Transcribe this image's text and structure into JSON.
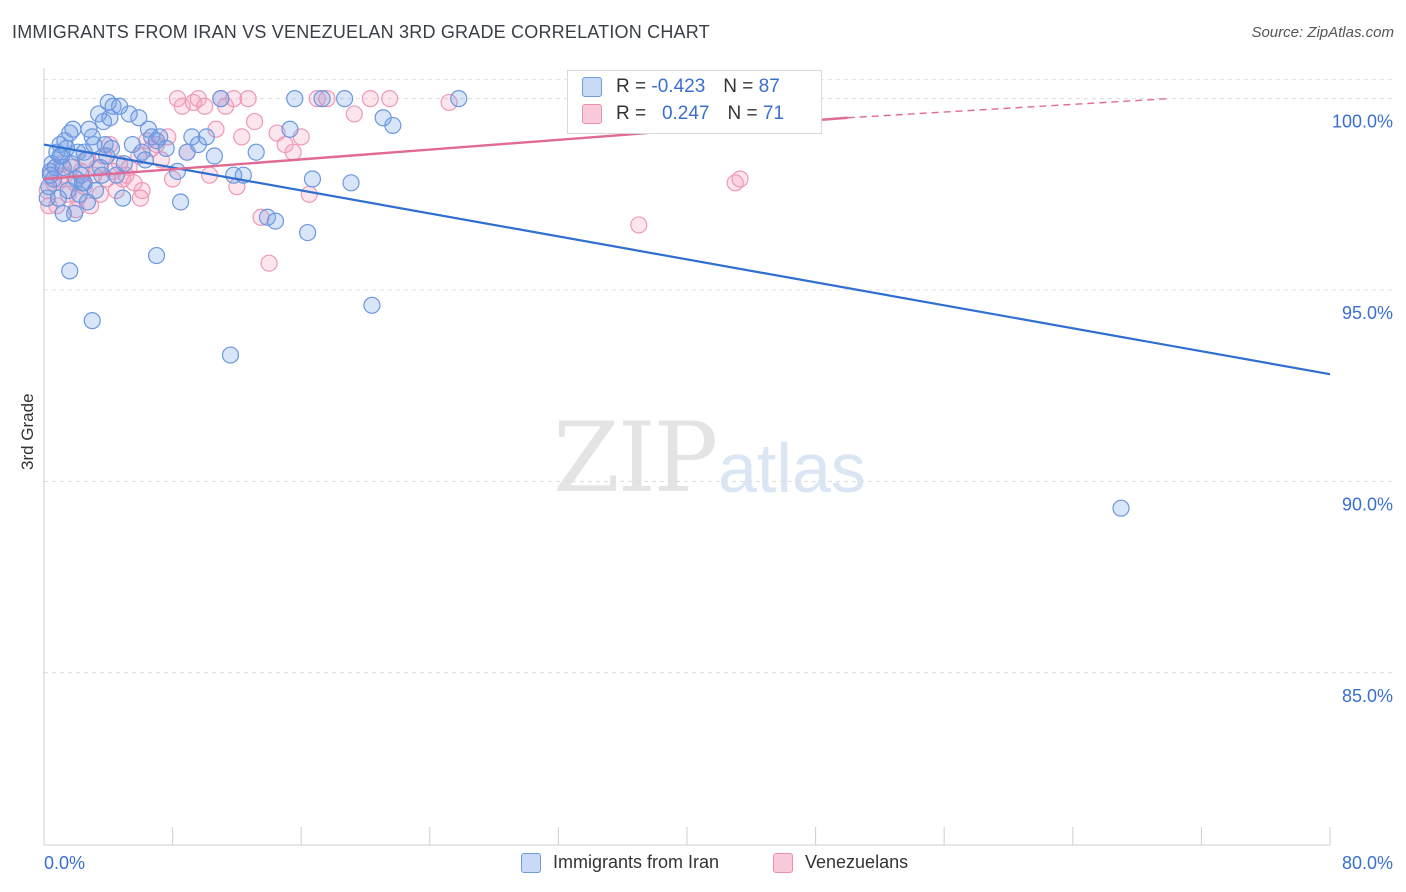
{
  "title": "IMMIGRANTS FROM IRAN VS VENEZUELAN 3RD GRADE CORRELATION CHART",
  "source": "Source: ZipAtlas.com",
  "watermark": {
    "zip": "ZIP",
    "atlas": "atlas"
  },
  "legend": {
    "rows": [
      {
        "r_label": "R =",
        "r_value": "-0.423",
        "n_label": "N =",
        "n_value": "87"
      },
      {
        "r_label": "R =",
        "r_value": "0.247",
        "n_label": "N =",
        "n_value": "71"
      }
    ]
  },
  "chart_data": {
    "type": "scatter",
    "xlabel": "",
    "ylabel": "3rd Grade",
    "xlim": [
      0,
      80
    ],
    "ylim": [
      80.5,
      100.8
    ],
    "x_tick_labels": [
      "0.0%",
      "80.0%"
    ],
    "y_ticks": [
      85,
      90,
      95,
      100
    ],
    "y_tick_labels": [
      "85.0%",
      "90.0%",
      "95.0%",
      "100.0%"
    ],
    "grid": true,
    "legend_position": "top-center",
    "colors": {
      "Immigrants from Iran": "#5b8fde",
      "Venezuelans": "#ee88aa",
      "blue_line": "#2f6fcf",
      "pink_line": "#e06a93",
      "tick_label": "#3a6fd0"
    },
    "series": [
      {
        "name": "Immigrants from Iran",
        "r": -0.423,
        "n": 87,
        "trend": {
          "x": [
            0,
            80
          ],
          "y": [
            98.8,
            92.8
          ]
        },
        "points": [
          [
            0.2,
            97.4
          ],
          [
            0.3,
            97.7
          ],
          [
            0.4,
            98.1
          ],
          [
            0.5,
            98.3
          ],
          [
            0.6,
            97.9
          ],
          [
            0.7,
            98.2
          ],
          [
            0.8,
            98.6
          ],
          [
            0.9,
            97.4
          ],
          [
            1.0,
            98.8
          ],
          [
            1.1,
            98.5
          ],
          [
            1.2,
            98.2
          ],
          [
            1.3,
            98.9
          ],
          [
            1.4,
            98.7
          ],
          [
            1.5,
            97.6
          ],
          [
            1.6,
            99.1
          ],
          [
            1.7,
            98.3
          ],
          [
            1.8,
            99.2
          ],
          [
            1.9,
            97.0
          ],
          [
            2.0,
            97.9
          ],
          [
            2.1,
            98.6
          ],
          [
            2.2,
            97.5
          ],
          [
            2.3,
            98.0
          ],
          [
            2.4,
            97.8
          ],
          [
            2.5,
            98.6
          ],
          [
            2.6,
            98.4
          ],
          [
            2.7,
            97.3
          ],
          [
            2.8,
            99.2
          ],
          [
            3.0,
            99.0
          ],
          [
            3.1,
            98.8
          ],
          [
            3.2,
            97.6
          ],
          [
            3.4,
            99.6
          ],
          [
            3.5,
            98.2
          ],
          [
            3.6,
            98.0
          ],
          [
            3.7,
            99.4
          ],
          [
            3.8,
            98.8
          ],
          [
            3.9,
            98.5
          ],
          [
            4.0,
            99.9
          ],
          [
            4.1,
            99.5
          ],
          [
            4.2,
            98.7
          ],
          [
            4.3,
            99.8
          ],
          [
            4.5,
            98.0
          ],
          [
            4.7,
            99.8
          ],
          [
            4.9,
            97.4
          ],
          [
            5.0,
            98.3
          ],
          [
            5.3,
            99.6
          ],
          [
            5.5,
            98.8
          ],
          [
            5.9,
            99.5
          ],
          [
            6.1,
            98.6
          ],
          [
            6.3,
            98.4
          ],
          [
            6.5,
            99.2
          ],
          [
            6.7,
            99.0
          ],
          [
            7.0,
            98.9
          ],
          [
            7.2,
            99.0
          ],
          [
            7.6,
            98.7
          ],
          [
            8.3,
            98.1
          ],
          [
            8.5,
            97.3
          ],
          [
            8.9,
            98.6
          ],
          [
            9.2,
            99.0
          ],
          [
            9.6,
            98.8
          ],
          [
            10.1,
            99.0
          ],
          [
            10.6,
            98.5
          ],
          [
            11.0,
            100.0
          ],
          [
            11.8,
            98.0
          ],
          [
            12.4,
            98.0
          ],
          [
            13.2,
            98.6
          ],
          [
            13.9,
            96.9
          ],
          [
            14.4,
            96.8
          ],
          [
            15.3,
            99.2
          ],
          [
            15.6,
            100.0
          ],
          [
            16.4,
            96.5
          ],
          [
            16.7,
            97.9
          ],
          [
            17.3,
            100.0
          ],
          [
            18.7,
            100.0
          ],
          [
            19.1,
            97.8
          ],
          [
            20.4,
            94.6
          ],
          [
            21.1,
            99.5
          ],
          [
            21.7,
            99.3
          ],
          [
            25.8,
            100.0
          ],
          [
            7.0,
            95.9
          ],
          [
            11.6,
            93.3
          ],
          [
            3.0,
            94.2
          ],
          [
            1.6,
            95.5
          ],
          [
            67.0,
            89.3
          ],
          [
            1.0,
            98.5
          ],
          [
            2.5,
            97.8
          ],
          [
            0.4,
            98.0
          ],
          [
            1.2,
            97.0
          ]
        ]
      },
      {
        "name": "Venezuelans",
        "r": 0.247,
        "n": 71,
        "trend": {
          "x": [
            0,
            50
          ],
          "y": [
            97.9,
            99.5
          ],
          "x_dashed": [
            50,
            70
          ],
          "y_dashed": [
            99.5,
            100.0
          ]
        },
        "points": [
          [
            0.2,
            97.6
          ],
          [
            0.3,
            97.2
          ],
          [
            0.4,
            98.1
          ],
          [
            0.6,
            97.8
          ],
          [
            0.8,
            97.2
          ],
          [
            1.0,
            97.9
          ],
          [
            1.1,
            98.3
          ],
          [
            1.3,
            98.0
          ],
          [
            1.5,
            97.5
          ],
          [
            1.7,
            98.2
          ],
          [
            1.9,
            97.8
          ],
          [
            2.1,
            97.4
          ],
          [
            2.3,
            98.1
          ],
          [
            2.5,
            97.7
          ],
          [
            2.7,
            98.4
          ],
          [
            2.9,
            97.2
          ],
          [
            3.1,
            98.0
          ],
          [
            3.3,
            98.2
          ],
          [
            3.5,
            97.5
          ],
          [
            3.7,
            98.5
          ],
          [
            3.9,
            97.9
          ],
          [
            4.1,
            98.8
          ],
          [
            4.3,
            98.1
          ],
          [
            4.5,
            97.6
          ],
          [
            4.7,
            98.3
          ],
          [
            4.9,
            97.9
          ],
          [
            5.1,
            98.0
          ],
          [
            5.3,
            98.2
          ],
          [
            5.6,
            97.8
          ],
          [
            5.9,
            98.5
          ],
          [
            6.1,
            97.6
          ],
          [
            6.4,
            98.9
          ],
          [
            6.7,
            98.7
          ],
          [
            7.0,
            98.8
          ],
          [
            7.3,
            98.4
          ],
          [
            7.7,
            99.0
          ],
          [
            8.0,
            97.9
          ],
          [
            8.3,
            100.0
          ],
          [
            8.6,
            99.8
          ],
          [
            8.9,
            98.6
          ],
          [
            9.3,
            99.9
          ],
          [
            9.6,
            100.0
          ],
          [
            10.0,
            99.8
          ],
          [
            10.3,
            98.0
          ],
          [
            10.7,
            99.2
          ],
          [
            11.0,
            100.0
          ],
          [
            11.3,
            99.8
          ],
          [
            11.8,
            100.0
          ],
          [
            12.3,
            99.0
          ],
          [
            12.7,
            100.0
          ],
          [
            13.1,
            99.4
          ],
          [
            13.5,
            96.9
          ],
          [
            14.0,
            95.7
          ],
          [
            14.5,
            99.1
          ],
          [
            15.0,
            98.8
          ],
          [
            15.5,
            98.6
          ],
          [
            16.0,
            99.0
          ],
          [
            16.5,
            97.5
          ],
          [
            17.0,
            100.0
          ],
          [
            17.6,
            100.0
          ],
          [
            19.3,
            99.6
          ],
          [
            20.3,
            100.0
          ],
          [
            21.5,
            100.0
          ],
          [
            25.2,
            99.9
          ],
          [
            36.0,
            99.6
          ],
          [
            37.0,
            96.7
          ],
          [
            43.0,
            97.8
          ],
          [
            43.3,
            97.9
          ],
          [
            6.0,
            97.4
          ],
          [
            12.0,
            97.7
          ],
          [
            2.0,
            97.1
          ]
        ]
      }
    ]
  },
  "bottom_legend": [
    {
      "label": "Immigrants from Iran"
    },
    {
      "label": "Venezuelans"
    }
  ]
}
